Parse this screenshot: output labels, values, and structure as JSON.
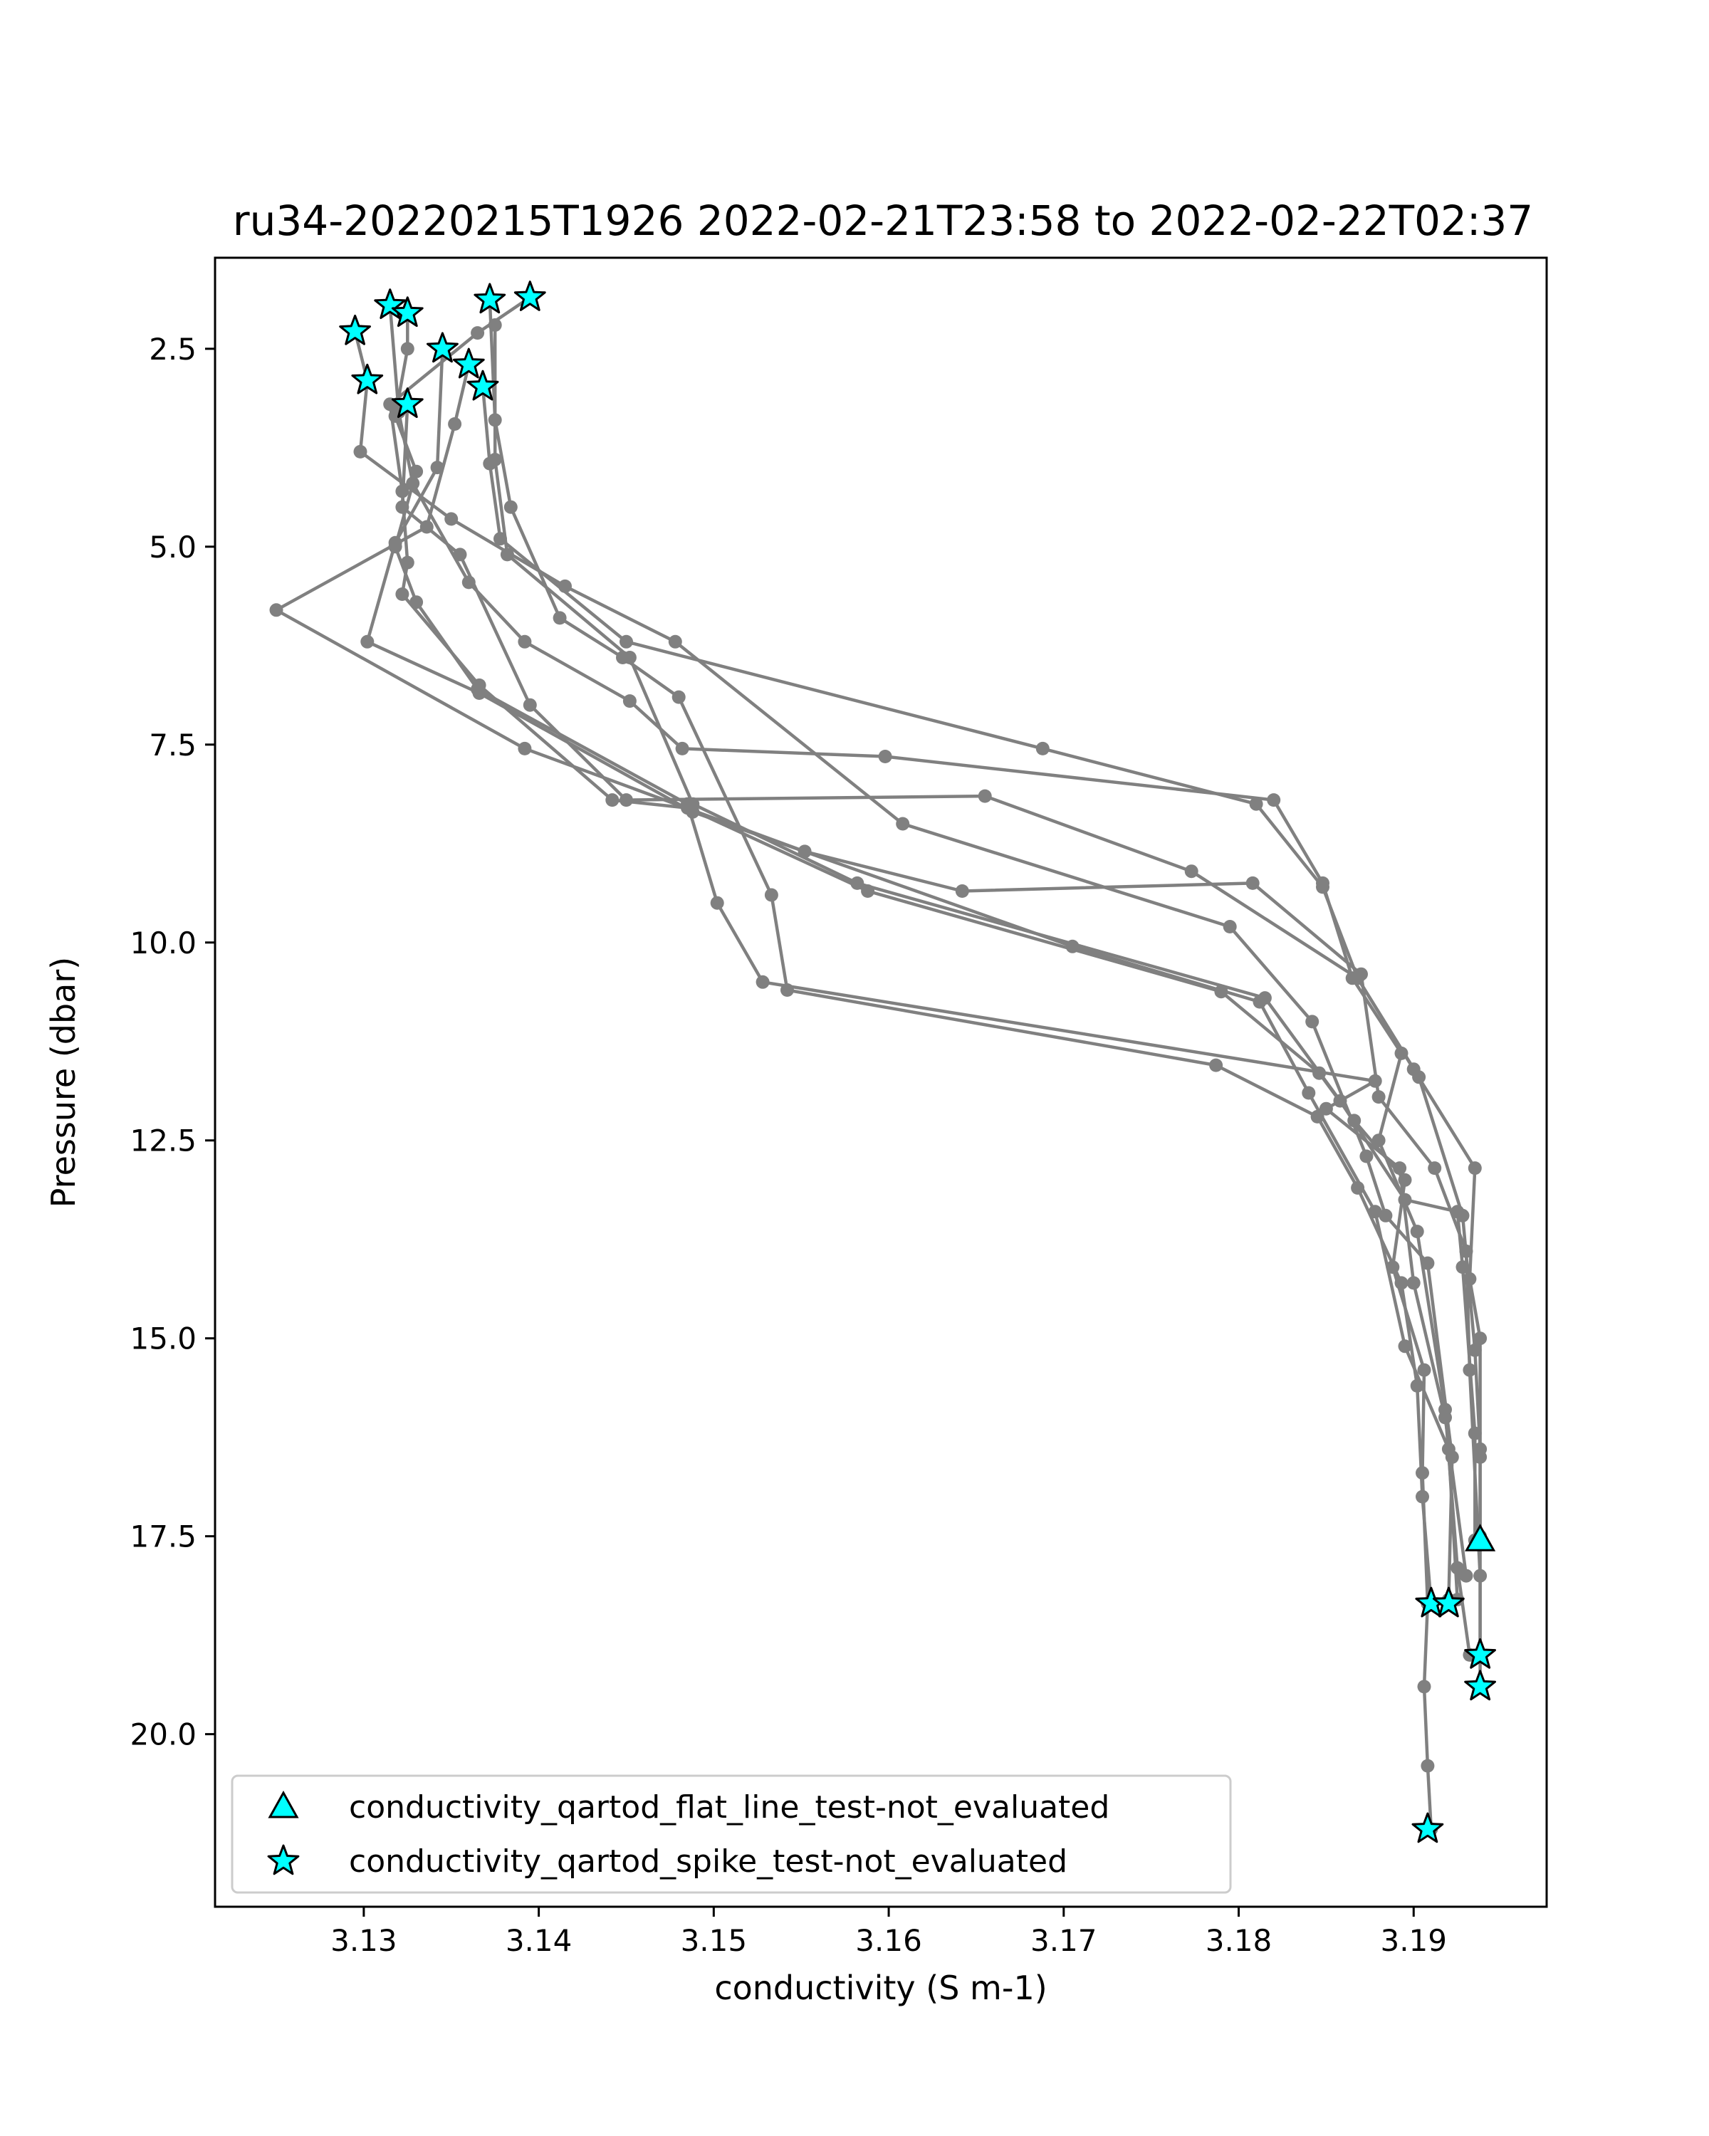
{
  "chart_data": {
    "type": "scatter",
    "title": "ru34-20220215T1926 2022-02-21T23:58 to 2022-02-22T02:37",
    "xlabel": "conductivity (S m-1)",
    "ylabel": "Pressure (dbar)",
    "xlim": [
      3.1215,
      3.1976
    ],
    "ylim": [
      22.18,
      1.35
    ],
    "y_inverted": true,
    "x_ticks": [
      3.13,
      3.14,
      3.15,
      3.16,
      3.17,
      3.18,
      3.19
    ],
    "x_tick_labels": [
      "3.13",
      "3.14",
      "3.15",
      "3.16",
      "3.17",
      "3.18",
      "3.19"
    ],
    "y_ticks": [
      2.5,
      5.0,
      7.5,
      10.0,
      12.5,
      15.0,
      17.5,
      20.0
    ],
    "y_tick_labels": [
      "2.5",
      "5.0",
      "7.5",
      "10.0",
      "12.5",
      "15.0",
      "17.5",
      "20.0"
    ],
    "grid": false,
    "legend_position": "lower-left",
    "colors": {
      "profile": "#808080",
      "flag_fill": "#00ffff",
      "flag_edge": "#000000"
    },
    "profiles": [
      {
        "color": "#808080",
        "points": [
          [
            3.1395,
            1.85
          ],
          [
            3.1365,
            2.3
          ],
          [
            3.1315,
            3.2
          ],
          [
            3.1322,
            4.3
          ],
          [
            3.1325,
            5.2
          ],
          [
            3.1322,
            5.6
          ],
          [
            3.1366,
            6.75
          ],
          [
            3.1442,
            8.2
          ],
          [
            3.1485,
            8.3
          ],
          [
            3.1588,
            9.35
          ],
          [
            3.179,
            10.62
          ],
          [
            3.1846,
            11.65
          ],
          [
            3.1866,
            12.25
          ],
          [
            3.1895,
            13.0
          ],
          [
            3.1888,
            14.1
          ],
          [
            3.1906,
            15.4
          ],
          [
            3.1905,
            16.7
          ],
          [
            3.1908,
            18.35
          ],
          [
            3.1906,
            19.4
          ],
          [
            3.1908,
            20.4
          ],
          [
            3.191,
            21.2
          ]
        ]
      },
      {
        "color": "#808080",
        "points": [
          [
            3.1372,
            1.88
          ],
          [
            3.1375,
            3.4
          ],
          [
            3.1384,
            4.5
          ],
          [
            3.1412,
            5.9
          ],
          [
            3.1448,
            6.4
          ],
          [
            3.148,
            6.9
          ],
          [
            3.1533,
            9.4
          ],
          [
            3.1542,
            10.6
          ],
          [
            3.1787,
            11.55
          ],
          [
            3.1845,
            12.2
          ],
          [
            3.1868,
            13.1
          ],
          [
            3.1893,
            14.3
          ],
          [
            3.1902,
            15.6
          ],
          [
            3.1905,
            17.0
          ],
          [
            3.191,
            18.35
          ]
        ]
      },
      {
        "color": "#808080",
        "points": [
          [
            3.1295,
            2.28
          ],
          [
            3.1302,
            2.9
          ],
          [
            3.1298,
            3.8
          ],
          [
            3.135,
            4.65
          ],
          [
            3.1415,
            5.5
          ],
          [
            3.1478,
            6.2
          ],
          [
            3.1608,
            8.5
          ],
          [
            3.1795,
            9.8
          ],
          [
            3.1842,
            11.0
          ],
          [
            3.1873,
            12.7
          ],
          [
            3.1884,
            13.45
          ],
          [
            3.1908,
            14.05
          ],
          [
            3.1922,
            16.5
          ],
          [
            3.192,
            18.3
          ]
        ]
      },
      {
        "color": "#808080",
        "points": [
          [
            3.1315,
            1.95
          ],
          [
            3.132,
            3.3
          ],
          [
            3.1328,
            4.2
          ],
          [
            3.136,
            5.45
          ],
          [
            3.1392,
            6.2
          ],
          [
            3.1452,
            6.95
          ],
          [
            3.1482,
            7.55
          ],
          [
            3.1598,
            7.65
          ],
          [
            3.182,
            8.2
          ],
          [
            3.1848,
            9.25
          ],
          [
            3.1865,
            10.45
          ],
          [
            3.1893,
            11.4
          ],
          [
            3.188,
            12.5
          ],
          [
            3.1902,
            13.65
          ],
          [
            3.1918,
            15.9
          ],
          [
            3.1925,
            17.9
          ],
          [
            3.1932,
            19.0
          ]
        ]
      },
      {
        "color": "#808080",
        "points": [
          [
            3.1325,
            2.05
          ],
          [
            3.1325,
            2.5
          ],
          [
            3.1318,
            3.35
          ],
          [
            3.133,
            4.05
          ],
          [
            3.1318,
            5.0
          ],
          [
            3.133,
            5.7
          ],
          [
            3.1365,
            6.8
          ],
          [
            3.1485,
            8.25
          ],
          [
            3.1502,
            9.5
          ],
          [
            3.1528,
            10.5
          ],
          [
            3.1878,
            11.75
          ],
          [
            3.185,
            12.1
          ],
          [
            3.1892,
            12.85
          ],
          [
            3.19,
            14.3
          ],
          [
            3.1918,
            16.0
          ],
          [
            3.193,
            18.0
          ]
        ]
      },
      {
        "color": "#808080",
        "points": [
          [
            3.1345,
            2.5
          ],
          [
            3.1342,
            4.0
          ],
          [
            3.1318,
            4.95
          ],
          [
            3.1302,
            6.2
          ],
          [
            3.1366,
            6.85
          ],
          [
            3.1488,
            8.35
          ],
          [
            3.1705,
            10.05
          ],
          [
            3.1812,
            10.75
          ],
          [
            3.184,
            11.9
          ],
          [
            3.1878,
            13.4
          ],
          [
            3.1895,
            15.1
          ],
          [
            3.192,
            16.4
          ],
          [
            3.1925,
            18.3
          ]
        ]
      },
      {
        "color": "#808080",
        "points": [
          [
            3.136,
            2.7
          ],
          [
            3.1352,
            3.45
          ],
          [
            3.1336,
            4.75
          ],
          [
            3.125,
            5.8
          ],
          [
            3.1392,
            7.55
          ],
          [
            3.1552,
            8.85
          ],
          [
            3.1642,
            9.35
          ],
          [
            3.1808,
            9.25
          ],
          [
            3.187,
            10.4
          ],
          [
            3.188,
            11.95
          ],
          [
            3.1912,
            12.85
          ],
          [
            3.193,
            13.9
          ],
          [
            3.1932,
            15.4
          ],
          [
            3.1938,
            18.0
          ],
          [
            3.1938,
            19.0
          ]
        ]
      },
      {
        "color": "#808080",
        "points": [
          [
            3.1368,
            2.98
          ],
          [
            3.1372,
            3.95
          ],
          [
            3.1378,
            4.9
          ],
          [
            3.145,
            6.2
          ],
          [
            3.1688,
            7.55
          ],
          [
            3.181,
            8.25
          ],
          [
            3.1848,
            9.3
          ],
          [
            3.1868,
            10.45
          ],
          [
            3.19,
            11.6
          ],
          [
            3.1935,
            12.85
          ],
          [
            3.1932,
            14.25
          ],
          [
            3.1938,
            15.0
          ],
          [
            3.1938,
            16.5
          ],
          [
            3.1938,
            17.55
          ],
          [
            3.1938,
            19.4
          ]
        ]
      },
      {
        "color": "#808080",
        "points": [
          [
            3.1375,
            2.2
          ],
          [
            3.1375,
            3.9
          ],
          [
            3.1382,
            5.1
          ],
          [
            3.1452,
            6.4
          ],
          [
            3.1488,
            8.25
          ],
          [
            3.1582,
            9.25
          ],
          [
            3.1815,
            10.7
          ],
          [
            3.1858,
            12.0
          ],
          [
            3.1895,
            13.25
          ],
          [
            3.1925,
            13.4
          ],
          [
            3.1928,
            14.1
          ],
          [
            3.1935,
            16.2
          ],
          [
            3.1935,
            17.55
          ]
        ]
      },
      {
        "color": "#808080",
        "points": [
          [
            3.1325,
            3.2
          ],
          [
            3.1322,
            4.5
          ],
          [
            3.1355,
            5.1
          ],
          [
            3.1395,
            7.0
          ],
          [
            3.145,
            8.2
          ],
          [
            3.1655,
            8.15
          ],
          [
            3.1773,
            9.1
          ],
          [
            3.1868,
            10.45
          ],
          [
            3.1903,
            11.7
          ],
          [
            3.1928,
            13.45
          ],
          [
            3.1935,
            15.15
          ],
          [
            3.1938,
            16.4
          ],
          [
            3.1938,
            17.5
          ]
        ]
      }
    ],
    "series": [
      {
        "name": "conductivity_qartod_flat_line_test-not_evaluated",
        "marker": "triangle",
        "points": [
          [
            3.1938,
            17.55
          ]
        ]
      },
      {
        "name": "conductivity_qartod_spike_test-not_evaluated",
        "marker": "star",
        "points": [
          [
            3.1315,
            1.95
          ],
          [
            3.1325,
            2.05
          ],
          [
            3.1295,
            2.28
          ],
          [
            3.1372,
            1.88
          ],
          [
            3.1395,
            1.85
          ],
          [
            3.1345,
            2.5
          ],
          [
            3.136,
            2.7
          ],
          [
            3.1302,
            2.9
          ],
          [
            3.1368,
            2.98
          ],
          [
            3.1325,
            3.2
          ],
          [
            3.191,
            18.35
          ],
          [
            3.192,
            18.35
          ],
          [
            3.1938,
            19.0
          ],
          [
            3.1938,
            19.4
          ],
          [
            3.1908,
            21.2
          ]
        ]
      }
    ]
  }
}
